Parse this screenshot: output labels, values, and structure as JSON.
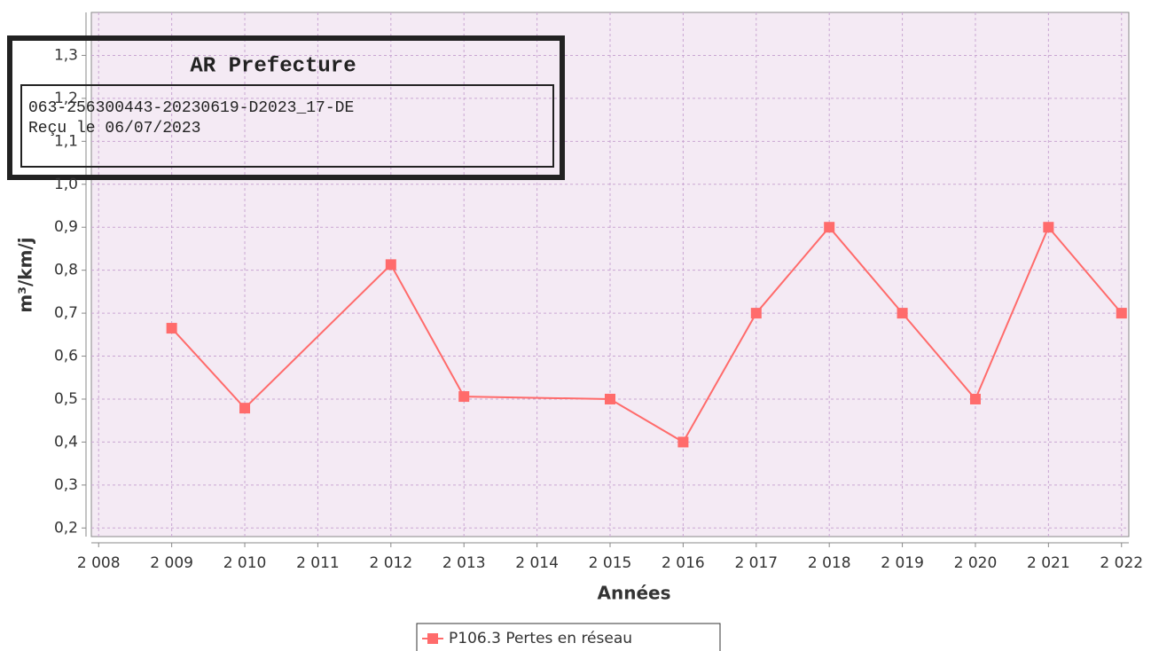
{
  "chart_data": {
    "type": "line",
    "x": [
      2009,
      2010,
      2012,
      2013,
      2015,
      2016,
      2017,
      2018,
      2019,
      2020,
      2021,
      2022
    ],
    "series": [
      {
        "name": "P106.3 Pertes en réseau",
        "color": "#ff6b6b",
        "values": [
          0.665,
          0.479,
          0.813,
          0.506,
          0.5,
          0.4,
          0.7,
          0.9,
          0.7,
          0.5,
          0.9,
          0.7
        ]
      }
    ],
    "xlabel": "Années",
    "ylabel": "m³/km/j",
    "xlim": [
      2007.9,
      2022.1
    ],
    "ylim": [
      0.18,
      1.4
    ],
    "xticks": [
      {
        "value": 2008,
        "label": "2 008"
      },
      {
        "value": 2009,
        "label": "2 009"
      },
      {
        "value": 2010,
        "label": "2 010"
      },
      {
        "value": 2011,
        "label": "2 011"
      },
      {
        "value": 2012,
        "label": "2 012"
      },
      {
        "value": 2013,
        "label": "2 013"
      },
      {
        "value": 2014,
        "label": "2 014"
      },
      {
        "value": 2015,
        "label": "2 015"
      },
      {
        "value": 2016,
        "label": "2 016"
      },
      {
        "value": 2017,
        "label": "2 017"
      },
      {
        "value": 2018,
        "label": "2 018"
      },
      {
        "value": 2019,
        "label": "2 019"
      },
      {
        "value": 2020,
        "label": "2 020"
      },
      {
        "value": 2021,
        "label": "2 021"
      },
      {
        "value": 2022,
        "label": "2 022"
      }
    ],
    "yticks": [
      {
        "value": 0.2,
        "label": "0,2"
      },
      {
        "value": 0.3,
        "label": "0,3"
      },
      {
        "value": 0.4,
        "label": "0,4"
      },
      {
        "value": 0.5,
        "label": "0,5"
      },
      {
        "value": 0.6,
        "label": "0,6"
      },
      {
        "value": 0.7,
        "label": "0,7"
      },
      {
        "value": 0.8,
        "label": "0,8"
      },
      {
        "value": 0.9,
        "label": "0,9"
      },
      {
        "value": 1.0,
        "label": "1,0"
      },
      {
        "value": 1.1,
        "label": "1,1"
      },
      {
        "value": 1.2,
        "label": "1,2"
      },
      {
        "value": 1.3,
        "label": "1,3"
      }
    ],
    "grid": true
  },
  "stamp": {
    "title": "AR Prefecture",
    "lines": [
      "063-256300443-20230619-D2023_17-DE",
      "Reçu le 06/07/2023"
    ]
  }
}
